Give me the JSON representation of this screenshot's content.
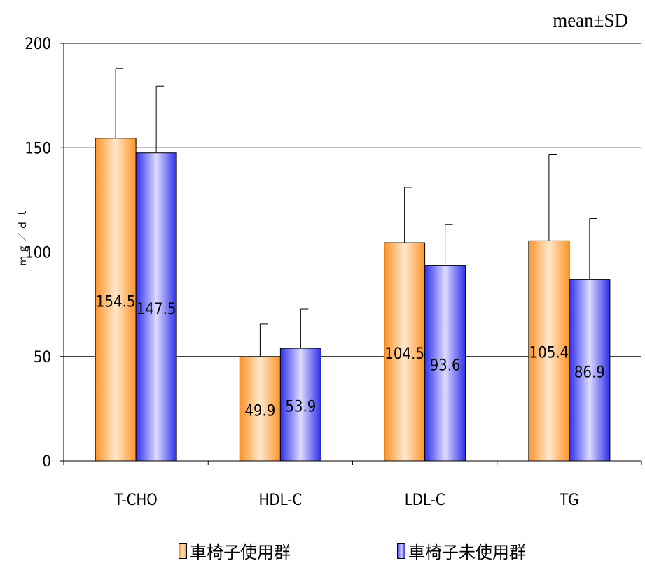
{
  "stat_note": "mean±SD",
  "colors": {
    "series1": "#ff9a33",
    "series2": "#4a4af0",
    "grid": "#000000"
  },
  "chart_data": {
    "type": "bar",
    "categories": [
      "T-CHO",
      "HDL-C",
      "LDL-C",
      "TG"
    ],
    "series": [
      {
        "name": "車椅子使用群",
        "values": [
          154.5,
          49.9,
          104.5,
          105.4
        ],
        "sd": [
          33.5,
          15.8,
          26.5,
          41.5
        ]
      },
      {
        "name": "車椅子未使用群",
        "values": [
          147.5,
          53.9,
          93.6,
          86.9
        ],
        "sd": [
          32.0,
          18.8,
          19.7,
          29.2
        ]
      }
    ],
    "ylabel": "ｍｇ／ｄｌ",
    "ylim": [
      0,
      200
    ],
    "yticks": [
      0,
      50,
      100,
      150,
      200
    ],
    "grid": true,
    "legend": "bottom"
  }
}
